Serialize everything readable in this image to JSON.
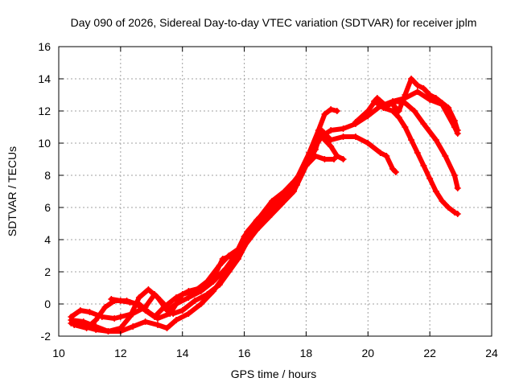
{
  "chart_data": {
    "type": "scatter",
    "title": "Day 090 of 2026, Sidereal Day-to-day VTEC variation (SDTVAR) for receiver jplm",
    "xlabel": "GPS time / hours",
    "ylabel": "SDTVAR / TECUs",
    "xlim": [
      10,
      24
    ],
    "ylim": [
      -2,
      16
    ],
    "xticks": [
      10,
      12,
      14,
      16,
      18,
      20,
      22,
      24
    ],
    "yticks": [
      -2,
      0,
      2,
      4,
      6,
      8,
      10,
      12,
      14,
      16
    ],
    "grid": true,
    "marker": "+",
    "color": "#ff0000",
    "series": [
      {
        "name": "track-1",
        "points": [
          [
            10.4,
            -1.2
          ],
          [
            10.8,
            -1.4
          ],
          [
            11.2,
            -1.6
          ],
          [
            11.6,
            -1.7
          ],
          [
            12.0,
            -1.7
          ],
          [
            12.4,
            -1.4
          ],
          [
            12.8,
            -1.1
          ],
          [
            13.2,
            -1.3
          ],
          [
            13.5,
            -1.5
          ],
          [
            13.8,
            -1.0
          ],
          [
            14.2,
            -0.6
          ],
          [
            14.6,
            0.0
          ],
          [
            15.0,
            0.8
          ],
          [
            15.3,
            1.6
          ],
          [
            15.5,
            2.4
          ],
          [
            15.8,
            3.2
          ],
          [
            16.0,
            3.9
          ],
          [
            16.3,
            4.8
          ],
          [
            16.6,
            5.6
          ],
          [
            17.0,
            6.4
          ],
          [
            17.4,
            7.0
          ],
          [
            17.8,
            8.0
          ],
          [
            18.1,
            9.2
          ],
          [
            18.4,
            10.3
          ],
          [
            18.8,
            10.8
          ],
          [
            19.2,
            10.9
          ],
          [
            19.6,
            11.2
          ],
          [
            20.0,
            11.7
          ],
          [
            20.4,
            12.3
          ],
          [
            20.8,
            12.6
          ],
          [
            21.2,
            12.8
          ],
          [
            21.6,
            13.2
          ],
          [
            22.0,
            12.7
          ],
          [
            22.4,
            12.4
          ],
          [
            22.8,
            11.0
          ],
          [
            22.9,
            10.6
          ]
        ]
      },
      {
        "name": "track-2",
        "points": [
          [
            10.4,
            -1.0
          ],
          [
            10.8,
            -1.1
          ],
          [
            11.2,
            -1.4
          ],
          [
            11.6,
            -1.7
          ],
          [
            12.0,
            -1.5
          ],
          [
            12.3,
            -0.8
          ],
          [
            12.6,
            0.4
          ],
          [
            12.9,
            0.9
          ],
          [
            13.2,
            0.4
          ],
          [
            13.5,
            -0.4
          ],
          [
            13.8,
            0.0
          ],
          [
            14.2,
            0.4
          ],
          [
            14.6,
            0.8
          ],
          [
            15.0,
            1.4
          ],
          [
            15.4,
            2.2
          ],
          [
            15.7,
            3.0
          ],
          [
            16.0,
            4.2
          ],
          [
            16.4,
            5.2
          ],
          [
            16.8,
            6.0
          ],
          [
            17.2,
            6.8
          ],
          [
            17.6,
            7.6
          ],
          [
            18.0,
            8.6
          ],
          [
            18.3,
            9.2
          ],
          [
            18.6,
            9.0
          ],
          [
            18.9,
            9.0
          ]
        ]
      },
      {
        "name": "track-3",
        "points": [
          [
            10.4,
            -0.8
          ],
          [
            10.7,
            -0.4
          ],
          [
            11.0,
            -0.5
          ],
          [
            11.4,
            -0.8
          ],
          [
            11.8,
            -0.9
          ],
          [
            12.0,
            -0.8
          ],
          [
            12.4,
            -0.6
          ],
          [
            12.8,
            -0.2
          ],
          [
            13.1,
            0.6
          ],
          [
            13.4,
            0.0
          ],
          [
            13.7,
            -0.6
          ],
          [
            14.0,
            -0.4
          ],
          [
            14.4,
            0.2
          ],
          [
            14.8,
            0.6
          ],
          [
            15.2,
            1.2
          ],
          [
            15.5,
            2.0
          ],
          [
            15.8,
            2.8
          ],
          [
            16.1,
            3.9
          ],
          [
            16.5,
            5.0
          ],
          [
            16.9,
            6.0
          ],
          [
            17.3,
            6.6
          ],
          [
            17.7,
            7.4
          ],
          [
            18.0,
            8.6
          ],
          [
            18.3,
            9.8
          ],
          [
            18.5,
            10.4
          ],
          [
            18.8,
            9.8
          ],
          [
            19.0,
            9.2
          ],
          [
            19.2,
            9.0
          ]
        ]
      },
      {
        "name": "track-4",
        "points": [
          [
            10.5,
            -1.3
          ],
          [
            10.9,
            -1.5
          ],
          [
            11.2,
            -1.0
          ],
          [
            11.5,
            -0.2
          ],
          [
            11.8,
            0.2
          ],
          [
            12.2,
            0.2
          ],
          [
            12.5,
            0.0
          ],
          [
            12.8,
            -0.4
          ],
          [
            13.1,
            -0.8
          ],
          [
            13.4,
            -0.2
          ],
          [
            13.8,
            0.4
          ],
          [
            14.2,
            0.8
          ],
          [
            14.6,
            1.0
          ],
          [
            15.0,
            1.6
          ],
          [
            15.3,
            2.8
          ],
          [
            15.6,
            3.0
          ],
          [
            16.0,
            3.6
          ],
          [
            16.4,
            4.6
          ],
          [
            16.8,
            5.4
          ],
          [
            17.2,
            6.2
          ],
          [
            17.6,
            7.0
          ],
          [
            18.0,
            8.6
          ],
          [
            18.3,
            9.6
          ],
          [
            18.5,
            10.8
          ],
          [
            18.8,
            10.2
          ],
          [
            19.2,
            10.4
          ],
          [
            19.6,
            10.4
          ],
          [
            20.0,
            10.0
          ],
          [
            20.4,
            9.4
          ],
          [
            20.6,
            9.2
          ],
          [
            20.8,
            8.4
          ],
          [
            20.9,
            8.2
          ]
        ]
      },
      {
        "name": "track-5",
        "points": [
          [
            11.7,
            0.3
          ],
          [
            12.0,
            0.2
          ],
          [
            12.3,
            0.1
          ],
          [
            12.6,
            0.0
          ],
          [
            12.9,
            -0.5
          ],
          [
            13.2,
            -0.9
          ],
          [
            13.6,
            -0.6
          ],
          [
            14.0,
            0.6
          ],
          [
            14.4,
            0.8
          ],
          [
            14.8,
            1.4
          ],
          [
            15.2,
            2.4
          ],
          [
            15.5,
            3.0
          ],
          [
            15.8,
            3.4
          ],
          [
            16.1,
            4.5
          ],
          [
            16.5,
            5.4
          ],
          [
            16.9,
            6.4
          ],
          [
            17.3,
            7.0
          ],
          [
            17.7,
            7.8
          ],
          [
            18.1,
            9.4
          ],
          [
            18.4,
            10.8
          ],
          [
            18.6,
            11.8
          ],
          [
            18.8,
            12.1
          ],
          [
            19.0,
            12.0
          ]
        ]
      },
      {
        "name": "track-6",
        "points": [
          [
            19.6,
            11.3
          ],
          [
            20.0,
            12.0
          ],
          [
            20.3,
            12.8
          ],
          [
            20.6,
            12.3
          ],
          [
            20.9,
            12.6
          ],
          [
            21.2,
            12.5
          ],
          [
            21.5,
            12.0
          ],
          [
            21.8,
            11.2
          ],
          [
            22.2,
            10.2
          ],
          [
            22.5,
            9.2
          ],
          [
            22.8,
            8.0
          ],
          [
            22.9,
            7.2
          ]
        ]
      },
      {
        "name": "track-7",
        "points": [
          [
            20.2,
            12.6
          ],
          [
            20.5,
            12.2
          ],
          [
            20.8,
            12.0
          ],
          [
            21.0,
            11.6
          ],
          [
            21.2,
            11.0
          ],
          [
            21.4,
            10.2
          ],
          [
            21.6,
            9.4
          ],
          [
            21.8,
            8.6
          ],
          [
            22.0,
            7.8
          ],
          [
            22.2,
            7.0
          ],
          [
            22.4,
            6.4
          ],
          [
            22.6,
            6.0
          ],
          [
            22.8,
            5.7
          ],
          [
            22.9,
            5.6
          ]
        ]
      },
      {
        "name": "track-8",
        "points": [
          [
            20.8,
            12.4
          ],
          [
            21.0,
            12.0
          ],
          [
            21.2,
            13.0
          ],
          [
            21.4,
            14.0
          ],
          [
            21.6,
            13.6
          ],
          [
            21.8,
            13.4
          ],
          [
            22.0,
            13.0
          ],
          [
            22.2,
            12.8
          ],
          [
            22.4,
            12.5
          ],
          [
            22.6,
            12.2
          ],
          [
            22.8,
            11.4
          ],
          [
            22.9,
            10.8
          ]
        ]
      }
    ]
  }
}
